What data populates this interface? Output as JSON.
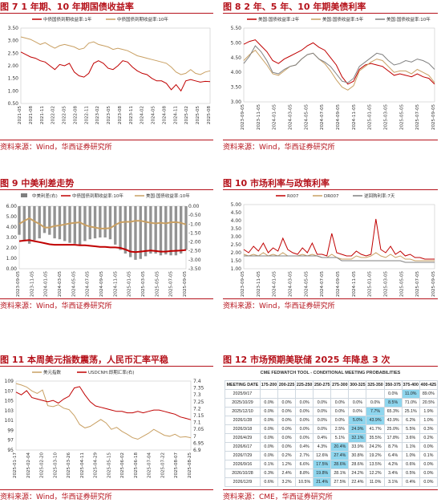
{
  "titles": {
    "t7": "图 7 1 年期、10 年期国债收益率",
    "t8": "图 8 2 年、5 年、10 年期美债利率",
    "t9": "图 9 中美利差走势",
    "t10": "图 10 市场利率与政策利率",
    "t11": "图 11 本周美元指数震荡，人民币汇率平稳",
    "t12": "图 12 市场预期美联储 2025 年降息 3 次"
  },
  "sources": {
    "s7": "资料来源：Wind，华西证券研究所",
    "s8": "资料来源：Wind，华西证券研究所",
    "s9": "资料来源：Wind，华西证券研究所",
    "s10": "资料来源：Wind，华西证券研究所",
    "s11": "资料来源：Wind，华西证券研究所",
    "s12": "资料来源：CME，华西证券研究所"
  },
  "colors": {
    "red": "#c00000",
    "tan": "#c9a063",
    "grey": "#808080",
    "darkred": "#8b0000",
    "highlight": "#8fd6ee",
    "title": "#b5121b"
  },
  "chart_data": [
    {
      "id": "c7",
      "type": "line",
      "legend": [
        "中债国债到期收益率:1年",
        "中债国债到期收益率:10年"
      ],
      "ylim": [
        0.5,
        3.5
      ],
      "yticks": [
        "3.50",
        "3.00",
        "2.50",
        "2.00",
        "1.50",
        "1.00",
        "0.50"
      ],
      "xticks": [
        "2021-05",
        "2021-08",
        "2021-11",
        "2022-02",
        "2022-05",
        "2022-08",
        "2022-11",
        "2023-02",
        "2023-05",
        "2023-08",
        "2023-11",
        "2024-02",
        "2024-05",
        "2024-08",
        "2024-11",
        "2025-02",
        "2025-05",
        "2025-08"
      ],
      "series": [
        {
          "name": "中债国债到期收益率:1年",
          "color": "#c00000",
          "values": [
            2.55,
            2.45,
            2.35,
            2.3,
            2.2,
            2.15,
            2.0,
            1.85,
            2.05,
            2.0,
            2.1,
            1.75,
            1.6,
            1.55,
            1.7,
            2.1,
            2.2,
            2.1,
            1.9,
            1.85,
            2.0,
            2.2,
            2.15,
            1.95,
            1.8,
            1.7,
            1.65,
            1.5,
            1.4,
            1.4,
            1.3,
            1.05,
            1.25,
            1.0,
            1.4,
            1.45,
            1.4,
            1.35,
            1.38,
            1.37
          ]
        },
        {
          "name": "中债国债到期收益率:10年",
          "color": "#c9a063",
          "values": [
            3.15,
            3.1,
            3.05,
            2.95,
            2.85,
            2.92,
            2.8,
            2.7,
            2.8,
            2.85,
            2.8,
            2.75,
            2.65,
            2.7,
            2.9,
            2.95,
            2.85,
            2.8,
            2.75,
            2.65,
            2.7,
            2.65,
            2.6,
            2.5,
            2.4,
            2.35,
            2.3,
            2.25,
            2.2,
            2.15,
            2.1,
            1.95,
            1.75,
            1.65,
            1.7,
            1.85,
            1.7,
            1.65,
            1.75,
            1.8
          ]
        }
      ]
    },
    {
      "id": "c8",
      "type": "line",
      "legend": [
        "美国:国债收益率:2年",
        "美国:国债收益率:5年",
        "美国:国债收益率:10年"
      ],
      "ylim": [
        3.0,
        5.5
      ],
      "yticks": [
        "5.50",
        "5.00",
        "4.50",
        "4.00",
        "3.50",
        "3.00"
      ],
      "xticks": [
        "2023-09-05",
        "2023-11-05",
        "2024-01-05",
        "2024-03-05",
        "2024-05-05",
        "2024-07-05",
        "2024-09-05",
        "2024-11-05",
        "2025-01-05",
        "2025-03-05",
        "2025-05-05",
        "2025-07-05",
        "2025-09-05"
      ],
      "series": [
        {
          "name": "美国:国债收益率:2年",
          "color": "#c00000",
          "values": [
            4.95,
            5.05,
            5.1,
            4.9,
            4.7,
            4.4,
            4.3,
            4.45,
            4.55,
            4.65,
            4.75,
            4.9,
            5.0,
            4.85,
            4.75,
            4.5,
            4.25,
            3.85,
            3.6,
            3.7,
            4.1,
            4.25,
            4.3,
            4.25,
            4.2,
            4.05,
            3.9,
            3.95,
            3.9,
            3.85,
            3.95,
            3.85,
            3.8,
            3.6
          ]
        },
        {
          "name": "美国:国债收益率:5年",
          "color": "#c9a063",
          "values": [
            4.4,
            4.6,
            4.75,
            4.5,
            4.25,
            3.95,
            3.9,
            4.05,
            4.2,
            4.25,
            4.45,
            4.6,
            4.65,
            4.45,
            4.3,
            4.05,
            3.75,
            3.5,
            3.4,
            3.55,
            4.05,
            4.2,
            4.35,
            4.45,
            4.4,
            4.2,
            4.0,
            4.05,
            4.05,
            3.95,
            4.1,
            4.0,
            3.9,
            3.65
          ]
        },
        {
          "name": "美国:国债收益率:10年",
          "color": "#808080",
          "values": [
            4.3,
            4.55,
            4.9,
            4.7,
            4.4,
            4.0,
            3.95,
            4.1,
            4.2,
            4.25,
            4.45,
            4.6,
            4.65,
            4.45,
            4.35,
            4.2,
            3.95,
            3.7,
            3.65,
            3.8,
            4.2,
            4.35,
            4.5,
            4.65,
            4.6,
            4.4,
            4.25,
            4.3,
            4.4,
            4.35,
            4.45,
            4.4,
            4.3,
            4.1
          ]
        }
      ]
    },
    {
      "id": "c9",
      "type": "line",
      "legend": [
        "中美利差(右)",
        "中债国债到期收益率:10年",
        "美国:国债收益率:10年"
      ],
      "ylim": [
        0.0,
        6.0
      ],
      "yticks": [
        "6.00",
        "5.00",
        "4.00",
        "3.00",
        "2.00",
        "1.00",
        "0.00"
      ],
      "y2lim": [
        -3.5,
        0.0
      ],
      "y2ticks": [
        "0.00",
        "-0.50",
        "-1.00",
        "-1.50",
        "-2.00",
        "-2.50",
        "-3.00",
        "-3.50"
      ],
      "xticks": [
        "2023-09-05",
        "2023-11-05",
        "2024-01-05",
        "2024-03-05",
        "2024-05-05",
        "2024-07-05",
        "2024-09-05",
        "2024-11-05",
        "2025-01-05",
        "2025-03-05",
        "2025-05-05",
        "2025-07-05",
        "2025-09-05"
      ],
      "series": [
        {
          "name": "中美利差(右)",
          "color": "#808080",
          "values": [
            -1.6,
            -1.9,
            -2.1,
            -1.9,
            -1.8,
            -1.5,
            -1.6,
            -1.8,
            -1.85,
            -1.95,
            -2.05,
            -2.1,
            -2.2,
            -1.95,
            -1.85,
            -1.8,
            -1.75,
            -1.75,
            -1.85,
            -2.15,
            -2.45,
            -2.65,
            -2.85,
            -3.0,
            -2.95,
            -2.8,
            -2.65,
            -2.65,
            -2.75,
            -2.7,
            -2.75,
            -2.75,
            -2.65,
            -2.45
          ]
        },
        {
          "name": "中债国债到期收益率:10年",
          "color": "#c00000",
          "values": [
            2.65,
            2.7,
            2.75,
            2.65,
            2.55,
            2.45,
            2.35,
            2.3,
            2.3,
            2.3,
            2.3,
            2.3,
            2.25,
            2.25,
            2.2,
            2.15,
            2.1,
            2.1,
            2.05,
            2.05,
            2.0,
            1.85,
            1.65,
            1.6,
            1.65,
            1.7,
            1.75,
            1.7,
            1.65,
            1.65,
            1.7,
            1.72,
            1.75,
            1.8
          ]
        },
        {
          "name": "美国:国债收益率:10年",
          "color": "#c9a063",
          "values": [
            4.3,
            4.6,
            4.85,
            4.55,
            4.3,
            3.95,
            3.95,
            4.1,
            4.15,
            4.25,
            4.35,
            4.4,
            4.45,
            4.2,
            4.05,
            3.95,
            3.85,
            3.85,
            3.9,
            4.2,
            4.45,
            4.5,
            4.5,
            4.6,
            4.6,
            4.5,
            4.4,
            4.35,
            4.4,
            4.35,
            4.45,
            4.47,
            4.4,
            4.25
          ]
        }
      ]
    },
    {
      "id": "c10",
      "type": "line",
      "legend": [
        "R007",
        "DR007",
        "逆回购利率:7天"
      ],
      "ylim": [
        1.0,
        5.0
      ],
      "yticks": [
        "5.00",
        "4.50",
        "4.00",
        "3.50",
        "3.00",
        "2.50",
        "2.00",
        "1.50",
        "1.00"
      ],
      "xticks": [
        "2023-09-05",
        "2023-11-05",
        "2024-01-05",
        "2024-03-05",
        "2024-05-05",
        "2024-07-05",
        "2024-09-05",
        "2024-11-05",
        "2025-01-05",
        "2025-03-05",
        "2025-05-05",
        "2025-07-05",
        "2025-09-05"
      ],
      "series": [
        {
          "name": "R007",
          "color": "#c00000",
          "values": [
            2.2,
            2.0,
            2.4,
            2.1,
            2.6,
            2.0,
            2.3,
            2.1,
            2.9,
            2.2,
            2.0,
            1.9,
            2.3,
            2.0,
            2.6,
            1.9,
            1.9,
            1.8,
            3.2,
            2.0,
            1.9,
            1.8,
            1.8,
            2.1,
            1.9,
            1.8,
            1.9,
            4.1,
            2.2,
            2.0,
            2.4,
            1.9,
            2.1,
            1.8,
            1.9,
            1.7,
            1.7,
            1.6,
            1.6,
            1.6
          ]
        },
        {
          "name": "DR007",
          "color": "#c9a063",
          "values": [
            1.9,
            1.8,
            1.9,
            1.8,
            2.0,
            1.8,
            1.9,
            1.8,
            2.0,
            1.8,
            1.8,
            1.8,
            1.9,
            1.8,
            1.9,
            1.8,
            1.7,
            1.7,
            1.9,
            1.7,
            1.6,
            1.6,
            1.6,
            1.8,
            1.7,
            1.7,
            1.8,
            2.0,
            1.8,
            1.7,
            1.9,
            1.7,
            1.8,
            1.6,
            1.6,
            1.5,
            1.5,
            1.5,
            1.5,
            1.5
          ]
        },
        {
          "name": "逆回购利率:7天",
          "color": "#808080",
          "values": [
            1.8,
            1.8,
            1.8,
            1.8,
            1.8,
            1.8,
            1.8,
            1.8,
            1.8,
            1.8,
            1.8,
            1.8,
            1.8,
            1.8,
            1.8,
            1.8,
            1.7,
            1.7,
            1.7,
            1.7,
            1.5,
            1.5,
            1.5,
            1.5,
            1.5,
            1.5,
            1.5,
            1.5,
            1.5,
            1.5,
            1.5,
            1.5,
            1.5,
            1.4,
            1.4,
            1.4,
            1.4,
            1.4,
            1.4,
            1.4
          ]
        }
      ]
    },
    {
      "id": "c11",
      "type": "line",
      "legend": [
        "美元指数",
        "USDCNH:即期汇率(右)"
      ],
      "ylim": [
        95,
        109
      ],
      "yticks": [
        "109",
        "107",
        "105",
        "103",
        "101",
        "99",
        "97",
        "95"
      ],
      "y2lim": [
        6.9,
        7.4
      ],
      "y2ticks": [
        "7.4",
        "7.35",
        "7.3",
        "7.25",
        "7.2",
        "7.15",
        "7.1",
        "7.05",
        "7",
        "6.95",
        "6.9"
      ],
      "xticks": [
        "2025-01-17",
        "2025-02-04",
        "2025-02-20",
        "2025-03-10",
        "2025-03-26",
        "2025-04-11",
        "2025-04-29",
        "2025-05-15",
        "2025-06-02",
        "2025-06-18",
        "2025-07-04",
        "2025-07-22",
        "2025-08-07",
        "2025-08-25"
      ],
      "series": [
        {
          "name": "美元指数",
          "color": "#c9a063",
          "values": [
            108.5,
            108.2,
            107.8,
            107.0,
            106.5,
            107.2,
            104.0,
            103.8,
            104.2,
            103.5,
            103.2,
            102.0,
            100.2,
            99.5,
            99.8,
            100.5,
            101.2,
            100.5,
            99.2,
            99.6,
            98.8,
            98.2,
            97.5,
            97.2,
            97.8,
            98.4,
            99.2,
            98.6,
            98.0,
            97.8,
            98.2,
            97.6,
            97.7,
            97.5
          ]
        },
        {
          "name": "USDCNH:即期汇率(右)",
          "color": "#c00000",
          "values": [
            7.32,
            7.3,
            7.33,
            7.28,
            7.27,
            7.26,
            7.25,
            7.26,
            7.24,
            7.27,
            7.29,
            7.35,
            7.36,
            7.3,
            7.25,
            7.22,
            7.21,
            7.2,
            7.19,
            7.18,
            7.18,
            7.17,
            7.17,
            7.18,
            7.17,
            7.18,
            7.19,
            7.19,
            7.18,
            7.17,
            7.16,
            7.14,
            7.13,
            7.12
          ]
        }
      ]
    },
    {
      "id": "c12",
      "type": "table",
      "heading": "CME FEDWATCH TOOL - CONDITIONAL MEETING PROBABILITIES",
      "columns": [
        "MEETING DATE",
        "175-200",
        "200-225",
        "225-250",
        "250-275",
        "275-300",
        "300-325",
        "325-350",
        "350-375",
        "375-400",
        "400-425"
      ],
      "rows": [
        [
          "2025/9/17",
          "",
          "",
          "",
          "",
          "",
          "",
          "",
          "0.0%",
          "11.0%",
          "89.0%"
        ],
        [
          "2025/10/29",
          "0.0%",
          "0.0%",
          "0.0%",
          "0.0%",
          "0.0%",
          "0.0%",
          "0.0%",
          "8.5%",
          "71.0%",
          "20.5%"
        ],
        [
          "2025/12/10",
          "0.0%",
          "0.0%",
          "0.0%",
          "0.0%",
          "0.0%",
          "0.0%",
          "7.7%",
          "65.3%",
          "25.1%",
          "1.9%"
        ],
        [
          "2026/1/28",
          "0.0%",
          "0.0%",
          "0.0%",
          "0.0%",
          "0.0%",
          "5.0%",
          "43.9%",
          "43.9%",
          "6.2%",
          "1.0%"
        ],
        [
          "2026/3/18",
          "0.0%",
          "0.0%",
          "0.0%",
          "0.0%",
          "2.5%",
          "24.9%",
          "41.7%",
          "25.0%",
          "5.5%",
          "0.3%"
        ],
        [
          "2026/4/29",
          "0.0%",
          "0.0%",
          "0.0%",
          "0.4%",
          "5.1%",
          "32.1%",
          "35.5%",
          "17.8%",
          "3.6%",
          "0.2%"
        ],
        [
          "2026/6/17",
          "0.0%",
          "0.0%",
          "0.4%",
          "4.3%",
          "20.4%",
          "33.9%",
          "24.2%",
          "8.7%",
          "1.1%",
          "0.0%"
        ],
        [
          "2026/7/29",
          "0.0%",
          "0.2%",
          "2.7%",
          "12.6%",
          "27.4%",
          "30.8%",
          "19.2%",
          "6.4%",
          "1.0%",
          "0.1%"
        ],
        [
          "2026/9/16",
          "0.1%",
          "1.2%",
          "6.6%",
          "17.5%",
          "28.6%",
          "28.6%",
          "13.5%",
          "4.2%",
          "0.6%",
          "0.0%"
        ],
        [
          "2026/10/28",
          "0.3%",
          "2.4%",
          "8.8%",
          "19.8%",
          "28.1%",
          "24.2%",
          "12.2%",
          "3.4%",
          "0.5%",
          "0.0%"
        ],
        [
          "2026/12/9",
          "0.6%",
          "3.2%",
          "10.5%",
          "21.4%",
          "27.5%",
          "22.4%",
          "11.0%",
          "3.1%",
          "0.4%",
          "0.0%"
        ]
      ],
      "highlights": [
        [
          0,
          9
        ],
        [
          1,
          8
        ],
        [
          2,
          7
        ],
        [
          3,
          6
        ],
        [
          3,
          7
        ],
        [
          4,
          6
        ],
        [
          5,
          6
        ],
        [
          6,
          5
        ],
        [
          7,
          5
        ],
        [
          8,
          4
        ],
        [
          8,
          5
        ],
        [
          9,
          4
        ],
        [
          10,
          4
        ]
      ]
    }
  ]
}
